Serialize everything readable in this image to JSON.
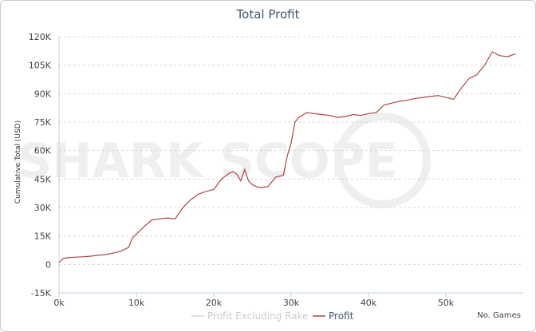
{
  "chart_data": {
    "type": "line",
    "title": "Total Profit",
    "ylabel": "Cumulative Total (USD)",
    "xlabel": "No. Games",
    "xlim": [
      0,
      60000
    ],
    "ylim": [
      -15000,
      120000
    ],
    "y_ticks": [
      -15000,
      0,
      15000,
      30000,
      45000,
      60000,
      75000,
      90000,
      105000,
      120000
    ],
    "y_tick_labels": [
      "-15K",
      "0",
      "15K",
      "30K",
      "45K",
      "60K",
      "75K",
      "90K",
      "105K",
      "120K"
    ],
    "x_ticks": [
      0,
      10000,
      20000,
      30000,
      40000,
      50000
    ],
    "x_tick_labels": [
      "0k",
      "10k",
      "20k",
      "30k",
      "40k",
      "50k"
    ],
    "grid": true,
    "legend_position": "bottom",
    "series": [
      {
        "name": "Profit Excluding Rake",
        "color": "#d6d6d6",
        "x": [],
        "y": []
      },
      {
        "name": "Profit",
        "color": "#aa4643",
        "x": [
          0,
          500,
          1000,
          2000,
          3000,
          4000,
          5000,
          6000,
          7000,
          8000,
          8500,
          9000,
          9500,
          10000,
          11000,
          12000,
          13000,
          14000,
          15000,
          16000,
          17000,
          18000,
          19000,
          20000,
          21000,
          22000,
          22500,
          23000,
          23500,
          24000,
          24500,
          25000,
          25500,
          26000,
          27000,
          28000,
          29000,
          29500,
          30000,
          30500,
          31000,
          32000,
          33000,
          34000,
          35000,
          36000,
          37000,
          38000,
          39000,
          40000,
          41000,
          42000,
          43000,
          44000,
          45000,
          46000,
          47000,
          48000,
          49000,
          50000,
          51000,
          52000,
          53000,
          54000,
          55000,
          56000,
          57000,
          58000,
          59000
        ],
        "y": [
          1000,
          3000,
          3500,
          3800,
          4000,
          4300,
          4800,
          5200,
          6000,
          7000,
          8000,
          9000,
          14000,
          16000,
          20000,
          23500,
          24000,
          24500,
          24000,
          30000,
          34000,
          37000,
          38500,
          39500,
          45000,
          48000,
          49000,
          47500,
          44000,
          50000,
          44000,
          42000,
          41000,
          40500,
          41000,
          46000,
          47000,
          57000,
          64000,
          75000,
          77500,
          80000,
          79500,
          79000,
          78500,
          77500,
          78000,
          79000,
          78500,
          79500,
          80000,
          84000,
          85000,
          86000,
          86500,
          87500,
          88000,
          88500,
          89000,
          88000,
          87000,
          93000,
          98000,
          100000,
          105000,
          112000,
          110000,
          109500,
          111000
        ]
      }
    ]
  },
  "watermark": "SHARK SCOPE"
}
